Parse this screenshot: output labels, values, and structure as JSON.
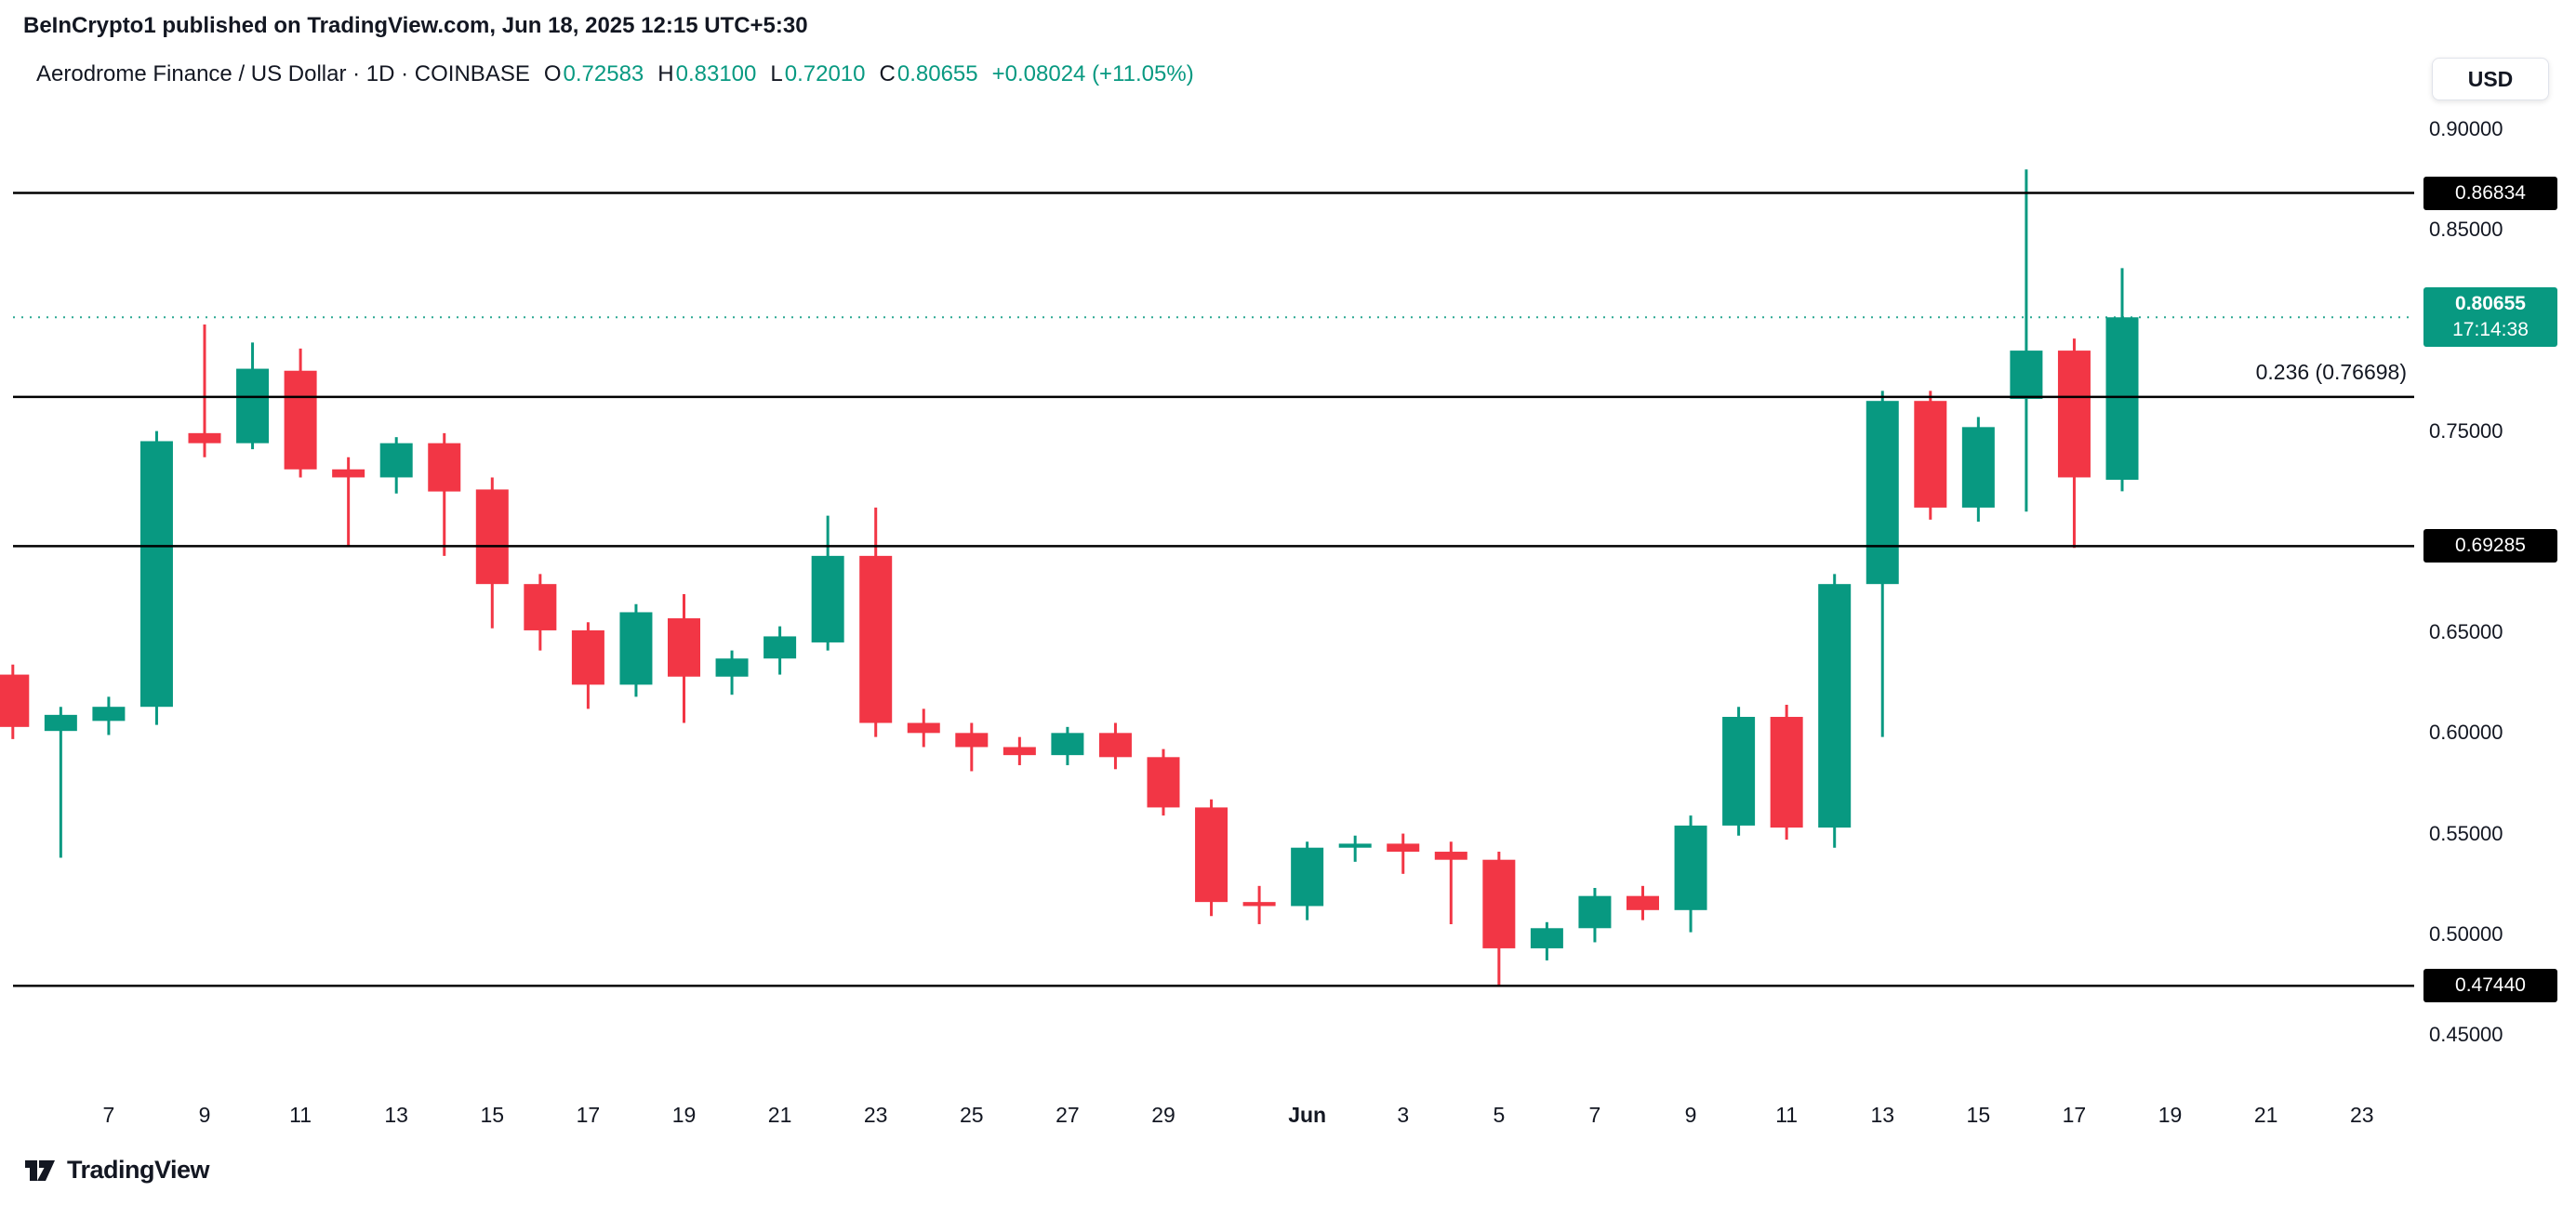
{
  "attribution": "BeInCrypto1 published on TradingView.com, Jun 18, 2025 12:15 UTC+5:30",
  "legend": {
    "title": "Aerodrome Finance / US Dollar · 1D · COINBASE",
    "ohlc": [
      {
        "label": "O",
        "value": "0.72583"
      },
      {
        "label": "H",
        "value": "0.83100"
      },
      {
        "label": "L",
        "value": "0.72010"
      },
      {
        "label": "C",
        "value": "0.80655"
      }
    ],
    "change": "+0.08024 (+11.05%)"
  },
  "price_axis": {
    "currency": "USD"
  },
  "footer": {
    "brand": "TradingView"
  },
  "chart_data": {
    "type": "candlestick",
    "title": "Aerodrome Finance / US Dollar",
    "timeframe": "1D",
    "exchange": "COINBASE",
    "current_price": 0.80655,
    "countdown": "17:14:38",
    "change_abs": "+0.08024",
    "change_pct": "+11.05%",
    "ylim": [
      0.45,
      0.9
    ],
    "colors": {
      "up": "#089981",
      "down": "#F23645",
      "level_line": "#000000",
      "text": "#131722"
    },
    "price_ticks": [
      "0.90000",
      "0.85000",
      "0.75000",
      "0.65000",
      "0.60000",
      "0.55000",
      "0.50000",
      "0.45000"
    ],
    "levels": [
      {
        "price": 0.86834,
        "badge": "0.86834"
      },
      {
        "price": 0.76698,
        "label": "0.236 (0.76698)"
      },
      {
        "price": 0.69285,
        "badge": "0.69285"
      },
      {
        "price": 0.4744,
        "badge": "0.47440"
      }
    ],
    "x_ticks": [
      {
        "i": 2,
        "label": "7"
      },
      {
        "i": 4,
        "label": "9"
      },
      {
        "i": 6,
        "label": "11"
      },
      {
        "i": 8,
        "label": "13"
      },
      {
        "i": 10,
        "label": "15"
      },
      {
        "i": 12,
        "label": "17"
      },
      {
        "i": 14,
        "label": "19"
      },
      {
        "i": 16,
        "label": "21"
      },
      {
        "i": 18,
        "label": "23"
      },
      {
        "i": 20,
        "label": "25"
      },
      {
        "i": 22,
        "label": "27"
      },
      {
        "i": 24,
        "label": "29"
      },
      {
        "i": 27,
        "label": "Jun",
        "bold": true
      },
      {
        "i": 29,
        "label": "3"
      },
      {
        "i": 31,
        "label": "5"
      },
      {
        "i": 33,
        "label": "7"
      },
      {
        "i": 35,
        "label": "9"
      },
      {
        "i": 37,
        "label": "11"
      },
      {
        "i": 39,
        "label": "13"
      },
      {
        "i": 41,
        "label": "15"
      },
      {
        "i": 43,
        "label": "17"
      },
      {
        "i": 45,
        "label": "19"
      },
      {
        "i": 47,
        "label": "21"
      },
      {
        "i": 49,
        "label": "23"
      }
    ],
    "candles": [
      {
        "t": "May 5",
        "o": 0.629,
        "h": 0.634,
        "l": 0.597,
        "c": 0.603
      },
      {
        "t": "May 6",
        "o": 0.601,
        "h": 0.613,
        "l": 0.538,
        "c": 0.609
      },
      {
        "t": "May 7",
        "o": 0.606,
        "h": 0.618,
        "l": 0.599,
        "c": 0.613
      },
      {
        "t": "May 8",
        "o": 0.613,
        "h": 0.75,
        "l": 0.604,
        "c": 0.745
      },
      {
        "t": "May 9",
        "o": 0.749,
        "h": 0.803,
        "l": 0.737,
        "c": 0.744
      },
      {
        "t": "May 10",
        "o": 0.744,
        "h": 0.794,
        "l": 0.741,
        "c": 0.781
      },
      {
        "t": "May 11",
        "o": 0.78,
        "h": 0.791,
        "l": 0.727,
        "c": 0.731
      },
      {
        "t": "May 12",
        "o": 0.731,
        "h": 0.737,
        "l": 0.693,
        "c": 0.727
      },
      {
        "t": "May 13",
        "o": 0.727,
        "h": 0.747,
        "l": 0.719,
        "c": 0.744
      },
      {
        "t": "May 14",
        "o": 0.744,
        "h": 0.749,
        "l": 0.688,
        "c": 0.72
      },
      {
        "t": "May 15",
        "o": 0.721,
        "h": 0.727,
        "l": 0.652,
        "c": 0.674
      },
      {
        "t": "May 16",
        "o": 0.674,
        "h": 0.679,
        "l": 0.641,
        "c": 0.651
      },
      {
        "t": "May 17",
        "o": 0.651,
        "h": 0.655,
        "l": 0.612,
        "c": 0.624
      },
      {
        "t": "May 18",
        "o": 0.624,
        "h": 0.664,
        "l": 0.618,
        "c": 0.66
      },
      {
        "t": "May 19",
        "o": 0.657,
        "h": 0.669,
        "l": 0.605,
        "c": 0.628
      },
      {
        "t": "May 20",
        "o": 0.628,
        "h": 0.641,
        "l": 0.619,
        "c": 0.637
      },
      {
        "t": "May 21",
        "o": 0.637,
        "h": 0.653,
        "l": 0.629,
        "c": 0.648
      },
      {
        "t": "May 22",
        "o": 0.645,
        "h": 0.708,
        "l": 0.641,
        "c": 0.688
      },
      {
        "t": "May 23",
        "o": 0.688,
        "h": 0.712,
        "l": 0.598,
        "c": 0.605
      },
      {
        "t": "May 24",
        "o": 0.605,
        "h": 0.612,
        "l": 0.593,
        "c": 0.6
      },
      {
        "t": "May 25",
        "o": 0.6,
        "h": 0.605,
        "l": 0.581,
        "c": 0.593
      },
      {
        "t": "May 26",
        "o": 0.593,
        "h": 0.598,
        "l": 0.584,
        "c": 0.589
      },
      {
        "t": "May 27",
        "o": 0.589,
        "h": 0.603,
        "l": 0.584,
        "c": 0.6
      },
      {
        "t": "May 28",
        "o": 0.6,
        "h": 0.605,
        "l": 0.582,
        "c": 0.588
      },
      {
        "t": "May 29",
        "o": 0.588,
        "h": 0.592,
        "l": 0.559,
        "c": 0.563
      },
      {
        "t": "May 30",
        "o": 0.563,
        "h": 0.567,
        "l": 0.509,
        "c": 0.516
      },
      {
        "t": "May 31",
        "o": 0.516,
        "h": 0.524,
        "l": 0.505,
        "c": 0.514
      },
      {
        "t": "Jun 1",
        "o": 0.514,
        "h": 0.546,
        "l": 0.507,
        "c": 0.543
      },
      {
        "t": "Jun 2",
        "o": 0.543,
        "h": 0.549,
        "l": 0.536,
        "c": 0.545
      },
      {
        "t": "Jun 3",
        "o": 0.545,
        "h": 0.55,
        "l": 0.53,
        "c": 0.541
      },
      {
        "t": "Jun 4",
        "o": 0.541,
        "h": 0.546,
        "l": 0.505,
        "c": 0.537
      },
      {
        "t": "Jun 5",
        "o": 0.537,
        "h": 0.541,
        "l": 0.474,
        "c": 0.493
      },
      {
        "t": "Jun 6",
        "o": 0.493,
        "h": 0.506,
        "l": 0.487,
        "c": 0.503
      },
      {
        "t": "Jun 7",
        "o": 0.503,
        "h": 0.523,
        "l": 0.496,
        "c": 0.519
      },
      {
        "t": "Jun 8",
        "o": 0.519,
        "h": 0.524,
        "l": 0.507,
        "c": 0.512
      },
      {
        "t": "Jun 9",
        "o": 0.512,
        "h": 0.559,
        "l": 0.501,
        "c": 0.554
      },
      {
        "t": "Jun 10",
        "o": 0.554,
        "h": 0.613,
        "l": 0.549,
        "c": 0.608
      },
      {
        "t": "Jun 11",
        "o": 0.608,
        "h": 0.614,
        "l": 0.547,
        "c": 0.553
      },
      {
        "t": "Jun 12",
        "o": 0.553,
        "h": 0.679,
        "l": 0.543,
        "c": 0.674
      },
      {
        "t": "Jun 13",
        "o": 0.674,
        "h": 0.77,
        "l": 0.598,
        "c": 0.765
      },
      {
        "t": "Jun 14",
        "o": 0.765,
        "h": 0.77,
        "l": 0.706,
        "c": 0.712
      },
      {
        "t": "Jun 15",
        "o": 0.712,
        "h": 0.757,
        "l": 0.705,
        "c": 0.752
      },
      {
        "t": "Jun 16",
        "o": 0.766,
        "h": 0.88,
        "l": 0.71,
        "c": 0.79
      },
      {
        "t": "Jun 17",
        "o": 0.79,
        "h": 0.796,
        "l": 0.692,
        "c": 0.727
      },
      {
        "t": "Jun 18",
        "o": 0.72583,
        "h": 0.831,
        "l": 0.7201,
        "c": 0.80655
      }
    ],
    "layout": {
      "y_top": 139,
      "y_bottom": 1113,
      "price_max": 0.9,
      "price_min": 0.45,
      "x0": 13.8,
      "dx": 51.55,
      "candle_w": 35,
      "plot_left": 14,
      "plot_right": 2596
    }
  }
}
